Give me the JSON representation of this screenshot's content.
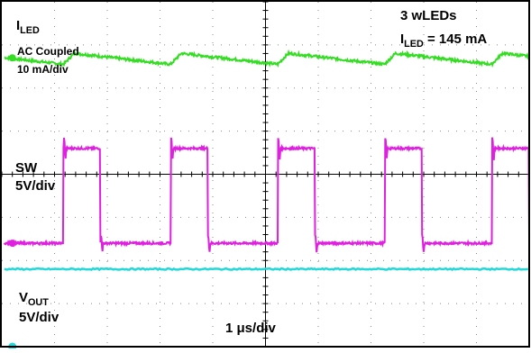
{
  "colors": {
    "grid": "#8a8a8a",
    "frame": "#000000",
    "iled_trace": "#33dd22",
    "sw_trace": "#e020e0",
    "vout_trace": "#22d8d8"
  },
  "labels": {
    "iled_main": "I",
    "iled_sub": "LED",
    "iled_coupling": "AC Coupled",
    "iled_scale": "10 mA/div",
    "sw_name": "SW",
    "sw_scale": "5V/div",
    "vout_main": "V",
    "vout_sub": "OUT",
    "vout_scale": "5V/div",
    "timebase": "1 μs/div",
    "cond_leds": "3 wLEDs",
    "cond_current_main": "I",
    "cond_current_sub": "LED",
    "cond_current_value": " = 145 mA"
  },
  "chart_data": {
    "type": "line",
    "title": "",
    "grid": {
      "divisions_x": 10,
      "divisions_y": 8,
      "on": true
    },
    "time_per_div_us": 1,
    "x_range_us": [
      0,
      10
    ],
    "series": [
      {
        "name": "I_LED",
        "unit_per_div": "10 mA/div",
        "coupling": "AC",
        "ripple_period_us": 2.03,
        "ripple_peak_to_peak_div": 0.3,
        "level_div": 2.7
      },
      {
        "name": "SW",
        "unit_per_div": "5V/div",
        "period_us": 2.03,
        "pulse_width_us": 0.7,
        "first_rise_us": 1.17,
        "high_level_div": 0.6,
        "low_level_div": -1.6
      },
      {
        "name": "V_OUT",
        "unit_per_div": "5V/div",
        "level_div": -2.2
      }
    ]
  }
}
